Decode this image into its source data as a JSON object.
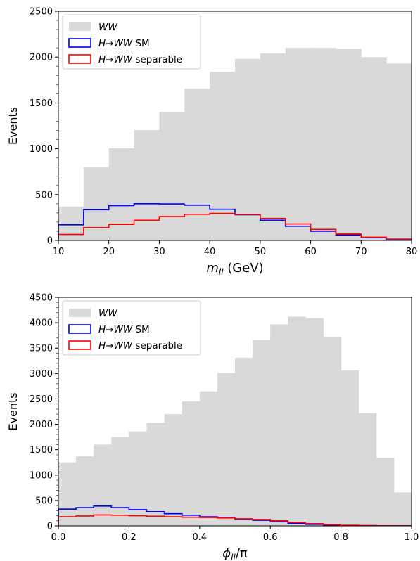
{
  "chart_data": [
    {
      "type": "bar",
      "xlabel_main": "m",
      "xlabel_sub": "ll",
      "xlabel_unit": " (GeV)",
      "ylabel": "Events",
      "xlim": [
        10,
        80
      ],
      "ylim": [
        0,
        2500
      ],
      "x_ticks": [
        10,
        20,
        30,
        40,
        50,
        60,
        70,
        80
      ],
      "y_ticks": [
        0,
        500,
        1000,
        1500,
        2000,
        2500
      ],
      "x_tick_labels": [
        "10",
        "20",
        "30",
        "40",
        "50",
        "60",
        "70",
        "80"
      ],
      "y_tick_labels": [
        "0",
        "500",
        "1000",
        "1500",
        "2000",
        "2500"
      ],
      "bin_edges": [
        10,
        15,
        20,
        25,
        30,
        35,
        40,
        45,
        50,
        55,
        60,
        65,
        70,
        75,
        80
      ],
      "legend_position": "top-left",
      "series": [
        {
          "name_italic": "WW",
          "name_rest": "",
          "style": "filled",
          "color": "#d9d9d9",
          "values": [
            370,
            800,
            1005,
            1205,
            1400,
            1655,
            1840,
            1980,
            2040,
            2100,
            2100,
            2090,
            2000,
            1930
          ]
        },
        {
          "name_italic": "H→WW",
          "name_rest": " SM",
          "style": "step",
          "color": "#0000ff",
          "values": [
            170,
            335,
            380,
            400,
            398,
            385,
            340,
            280,
            220,
            155,
            100,
            60,
            30,
            10
          ]
        },
        {
          "name_italic": "H→WW",
          "name_rest": " separable",
          "style": "step",
          "color": "#ff0000",
          "values": [
            65,
            140,
            175,
            220,
            260,
            285,
            295,
            285,
            240,
            180,
            120,
            70,
            35,
            15
          ]
        }
      ]
    },
    {
      "type": "bar",
      "xlabel_main": "ϕ",
      "xlabel_sub": "ll",
      "xlabel_unit": "/π",
      "ylabel": "Events",
      "xlim": [
        0,
        1
      ],
      "ylim": [
        0,
        4500
      ],
      "x_ticks": [
        0,
        0.2,
        0.4,
        0.6,
        0.8,
        1.0
      ],
      "y_ticks": [
        0,
        500,
        1000,
        1500,
        2000,
        2500,
        3000,
        3500,
        4000,
        4500
      ],
      "x_tick_labels": [
        "0.0",
        "0.2",
        "0.4",
        "0.6",
        "0.8",
        "1.0"
      ],
      "y_tick_labels": [
        "0",
        "500",
        "1000",
        "1500",
        "2000",
        "2500",
        "3000",
        "3500",
        "4000",
        "4500"
      ],
      "bin_edges": [
        0,
        0.05,
        0.1,
        0.15,
        0.2,
        0.25,
        0.3,
        0.35,
        0.4,
        0.45,
        0.5,
        0.55,
        0.6,
        0.65,
        0.7,
        0.75,
        0.8,
        0.85,
        0.9,
        0.95,
        1.0
      ],
      "legend_position": "top-left",
      "series": [
        {
          "name_italic": "WW",
          "name_rest": "",
          "style": "filled",
          "color": "#d9d9d9",
          "values": [
            1250,
            1370,
            1600,
            1750,
            1860,
            2030,
            2200,
            2450,
            2650,
            3010,
            3310,
            3660,
            3970,
            4120,
            4090,
            3720,
            3060,
            2220,
            1340,
            660
          ]
        },
        {
          "name_italic": "H→WW",
          "name_rest": " SM",
          "style": "step",
          "color": "#0000ff",
          "values": [
            330,
            360,
            390,
            360,
            320,
            280,
            240,
            210,
            180,
            160,
            130,
            110,
            80,
            50,
            30,
            15,
            8,
            4,
            2,
            1
          ]
        },
        {
          "name_italic": "H→WW",
          "name_rest": " separable",
          "style": "step",
          "color": "#ff0000",
          "values": [
            180,
            195,
            215,
            210,
            200,
            190,
            180,
            170,
            165,
            155,
            140,
            125,
            100,
            70,
            45,
            25,
            12,
            6,
            3,
            1
          ]
        }
      ]
    }
  ]
}
